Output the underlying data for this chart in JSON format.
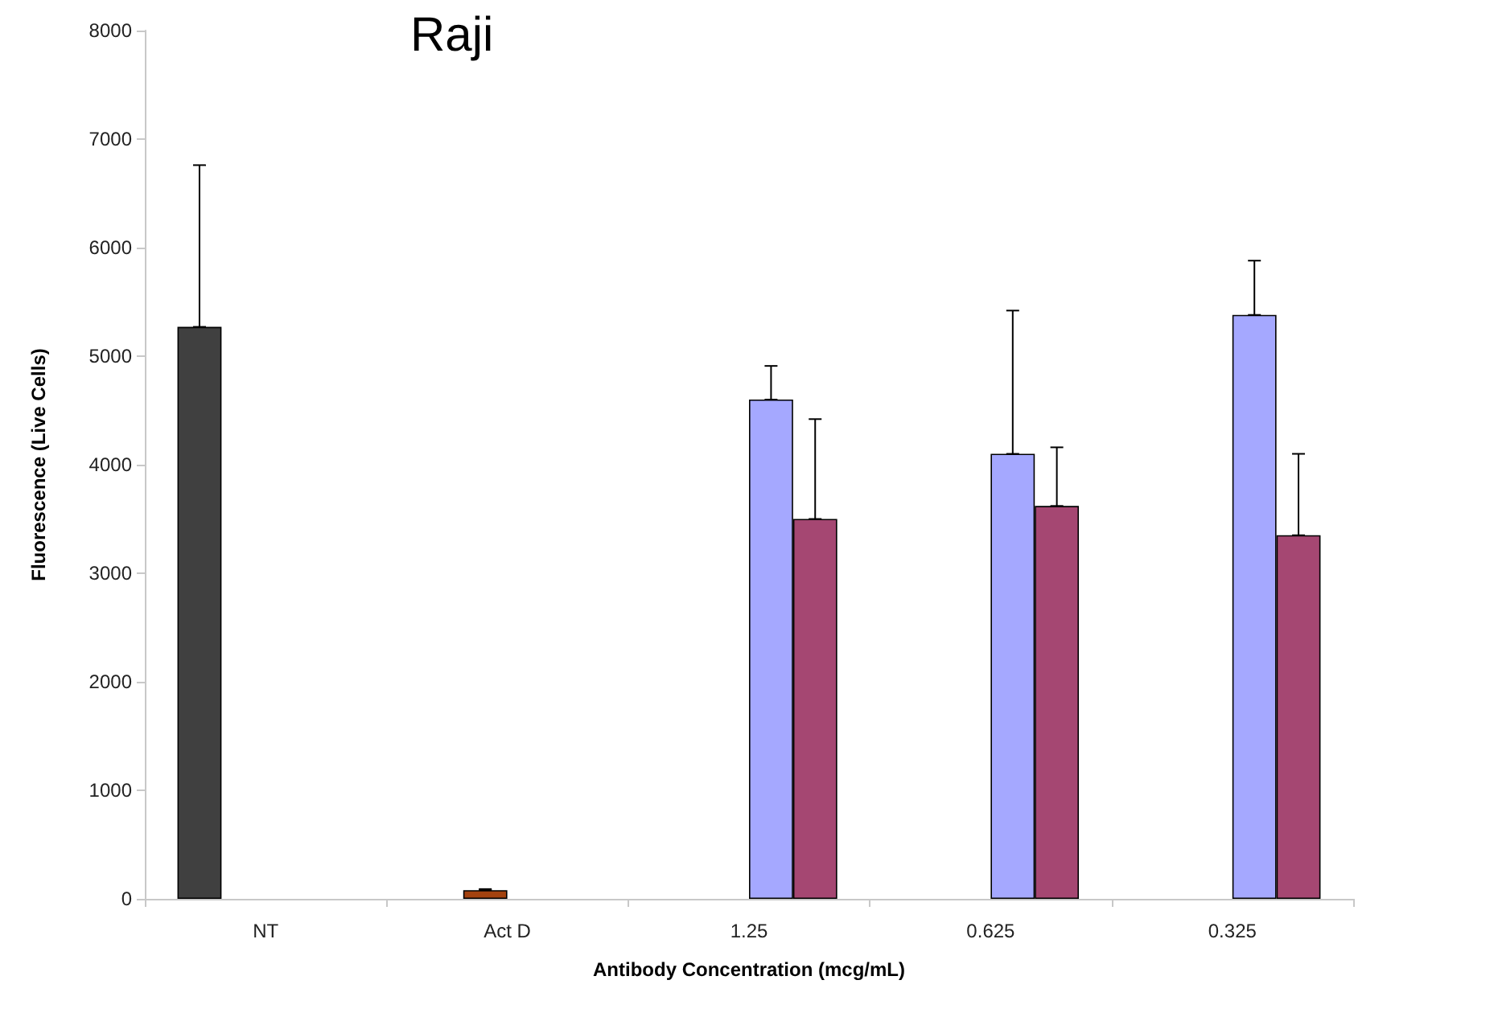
{
  "chart_data": {
    "type": "bar",
    "title": "Raji",
    "xlabel": "Antibody Concentration (mcg/mL)",
    "ylabel": "Fluorescence (Live Cells)",
    "categories": [
      "NT",
      "Act D",
      "1.25",
      "0.625",
      "0.325"
    ],
    "series": [
      {
        "color": "#404040",
        "values": [
          5270,
          null,
          null,
          null,
          null
        ],
        "errors": [
          [
            5270,
            6760
          ],
          null,
          null,
          null,
          null
        ]
      },
      {
        "color": "#a3420f",
        "values": [
          null,
          80,
          null,
          null,
          null
        ],
        "errors": [
          null,
          [
            80,
            90
          ],
          null,
          null,
          null
        ]
      },
      {
        "color": "#a5a8ff",
        "values": [
          null,
          null,
          4600,
          4100,
          5380
        ],
        "errors": [
          null,
          null,
          [
            4600,
            4910
          ],
          [
            4100,
            5420
          ],
          [
            5380,
            5880
          ]
        ]
      },
      {
        "color": "#a54772",
        "values": [
          null,
          null,
          3500,
          3620,
          3350
        ],
        "errors": [
          null,
          null,
          [
            3500,
            4420
          ],
          [
            3620,
            4160
          ],
          [
            3350,
            4100
          ]
        ]
      }
    ],
    "ylim": [
      0,
      8000
    ],
    "yticks": [
      0,
      1000,
      2000,
      3000,
      4000,
      5000,
      6000,
      7000,
      8000
    ],
    "grid": false
  }
}
